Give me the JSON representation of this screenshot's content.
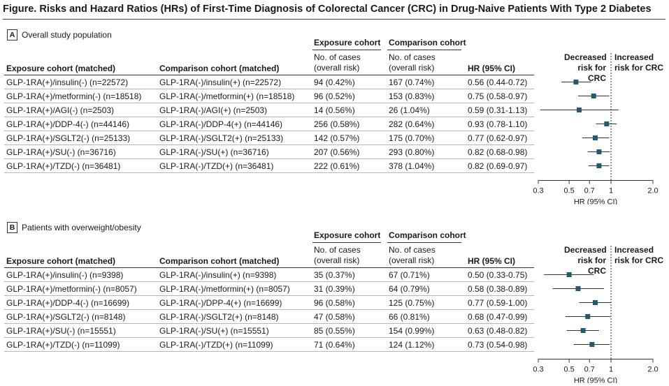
{
  "title": "Figure. Risks and Hazard Ratios (HRs) of First-Time Diagnosis of Colorectal Cancer (CRC) in Drug-Naive Patients With Type 2 Diabetes",
  "headers": {
    "exposure_cohort": "Exposure cohort",
    "comparison_cohort": "Comparison cohort",
    "no_of_cases": "No. of cases",
    "overall_risk": "(overall risk)",
    "exposure_matched": "Exposure cohort (matched)",
    "comparison_matched": "Comparison cohort (matched)",
    "hr_ci": "HR (95% CI)",
    "decreased": "Decreased",
    "increased": "Increased",
    "risk_for_crc": "risk for CRC",
    "axis_label": "HR (95% CI)"
  },
  "panels": [
    {
      "letter": "A",
      "label": "Overall study population",
      "rows": [
        {
          "exposure": "GLP-1RA(+)/insulin(-) (n=22572)",
          "comparison": "GLP-1RA(-)/insulin(+) (n=22572)",
          "exp_cases": "94 (0.42%)",
          "cmp_cases": "167 (0.74%)",
          "hr_text": "0.56 (0.44-0.72)"
        },
        {
          "exposure": "GLP-1RA(+)/metformin(-) (n=18518)",
          "comparison": "GLP-1RA(-)/metformin(+) (n=18518)",
          "exp_cases": "96 (0.52%)",
          "cmp_cases": "153 (0.83%)",
          "hr_text": "0.75 (0.58-0.97)"
        },
        {
          "exposure": "GLP-1RA(+)/AGI(-) (n=2503)",
          "comparison": "GLP-1RA(-)/AGI(+) (n=2503)",
          "exp_cases": "14 (0.56%)",
          "cmp_cases": "26 (1.04%)",
          "hr_text": "0.59 (0.31-1.13)"
        },
        {
          "exposure": "GLP-1RA(+)/DDP-4(-) (n=44146)",
          "comparison": "GLP-1RA(-)/DDP-4(+) (n=44146)",
          "exp_cases": "256 (0.58%)",
          "cmp_cases": "282 (0.64%)",
          "hr_text": "0.93 (0.78-1.10)"
        },
        {
          "exposure": "GLP-1RA(+)/SGLT2(-) (n=25133)",
          "comparison": "GLP-1RA(-)/SGLT2(+) (n=25133)",
          "exp_cases": "142 (0.57%)",
          "cmp_cases": "175 (0.70%)",
          "hr_text": "0.77 (0.62-0.97)"
        },
        {
          "exposure": "GLP-1RA(+)/SU(-) (n=36716)",
          "comparison": "GLP-1RA(-)/SU(+) (n=36716)",
          "exp_cases": "207 (0.56%)",
          "cmp_cases": "293 (0.80%)",
          "hr_text": "0.82 (0.68-0.98)"
        },
        {
          "exposure": "GLP-1RA(+)/TZD(-) (n=36481)",
          "comparison": "GLP-1RA(-)/TZD(+) (n=36481)",
          "exp_cases": "222 (0.61%)",
          "cmp_cases": "378 (1.04%)",
          "hr_text": "0.82 (0.69-0.97)"
        }
      ]
    },
    {
      "letter": "B",
      "label": "Patients with overweight/obesity",
      "rows": [
        {
          "exposure": "GLP-1RA(+)/insulin(-) (n=9398)",
          "comparison": "GLP-1RA(-)/insulin(+) (n=9398)",
          "exp_cases": "35 (0.37%)",
          "cmp_cases": "67 (0.71%)",
          "hr_text": "0.50 (0.33-0.75)"
        },
        {
          "exposure": "GLP-1RA(+)/metformin(-) (n=8057)",
          "comparison": "GLP-1RA(-)/metformin(+) (n=8057)",
          "exp_cases": "31 (0.39%)",
          "cmp_cases": "64 (0.79%)",
          "hr_text": "0.58 (0.38-0.89)"
        },
        {
          "exposure": "GLP-1RA(+)/DDP-4(-) (n=16699)",
          "comparison": "GLP-1RA(-)/DPP-4(+) (n=16699)",
          "exp_cases": "96 (0.58%)",
          "cmp_cases": "125 (0.75%)",
          "hr_text": "0.77 (0.59-1.00)"
        },
        {
          "exposure": "GLP-1RA(+)/SGLT2(-) (n=8148)",
          "comparison": "GLP-1RA(-)/SGLT2(+) (n=8148)",
          "exp_cases": "47 (0.58%)",
          "cmp_cases": "66 (0.81%)",
          "hr_text": "0.68 (0.47-0.99)"
        },
        {
          "exposure": "GLP-1RA(+)/SU(-) (n=15551)",
          "comparison": "GLP-1RA(-)/SU(+) (n=15551)",
          "exp_cases": "85 (0.55%)",
          "cmp_cases": "154 (0.99%)",
          "hr_text": "0.63 (0.48-0.82)"
        },
        {
          "exposure": "GLP-1RA(+)/TZD(-) (n=11099)",
          "comparison": "GLP-1RA(-)/TZD(+) (n=11099)",
          "exp_cases": "71 (0.64%)",
          "cmp_cases": "124 (1.12%)",
          "hr_text": "0.73 (0.54-0.98)"
        }
      ]
    }
  ],
  "chart_data": [
    {
      "type": "forest",
      "panel": "A",
      "x_scale": "log",
      "xlim": [
        0.3,
        2.0
      ],
      "x_ticks": [
        "0.3",
        "0.5",
        "0.7",
        "1",
        "2.0"
      ],
      "reference": 1,
      "xlabel": "HR (95% CI)",
      "marker_color": "#2b5866",
      "points": [
        {
          "hr": 0.56,
          "lo": 0.44,
          "hi": 0.72
        },
        {
          "hr": 0.75,
          "lo": 0.58,
          "hi": 0.97
        },
        {
          "hr": 0.59,
          "lo": 0.31,
          "hi": 1.13
        },
        {
          "hr": 0.93,
          "lo": 0.78,
          "hi": 1.1
        },
        {
          "hr": 0.77,
          "lo": 0.62,
          "hi": 0.97
        },
        {
          "hr": 0.82,
          "lo": 0.68,
          "hi": 0.98
        },
        {
          "hr": 0.82,
          "lo": 0.69,
          "hi": 0.97
        }
      ]
    },
    {
      "type": "forest",
      "panel": "B",
      "x_scale": "log",
      "xlim": [
        0.3,
        2.0
      ],
      "x_ticks": [
        "0.3",
        "0.5",
        "0.7",
        "1",
        "2.0"
      ],
      "reference": 1,
      "xlabel": "HR (95% CI)",
      "marker_color": "#2b5866",
      "points": [
        {
          "hr": 0.5,
          "lo": 0.33,
          "hi": 0.75
        },
        {
          "hr": 0.58,
          "lo": 0.38,
          "hi": 0.89
        },
        {
          "hr": 0.77,
          "lo": 0.59,
          "hi": 1.0
        },
        {
          "hr": 0.68,
          "lo": 0.47,
          "hi": 0.99
        },
        {
          "hr": 0.63,
          "lo": 0.48,
          "hi": 0.82
        },
        {
          "hr": 0.73,
          "lo": 0.54,
          "hi": 0.98
        }
      ]
    }
  ]
}
